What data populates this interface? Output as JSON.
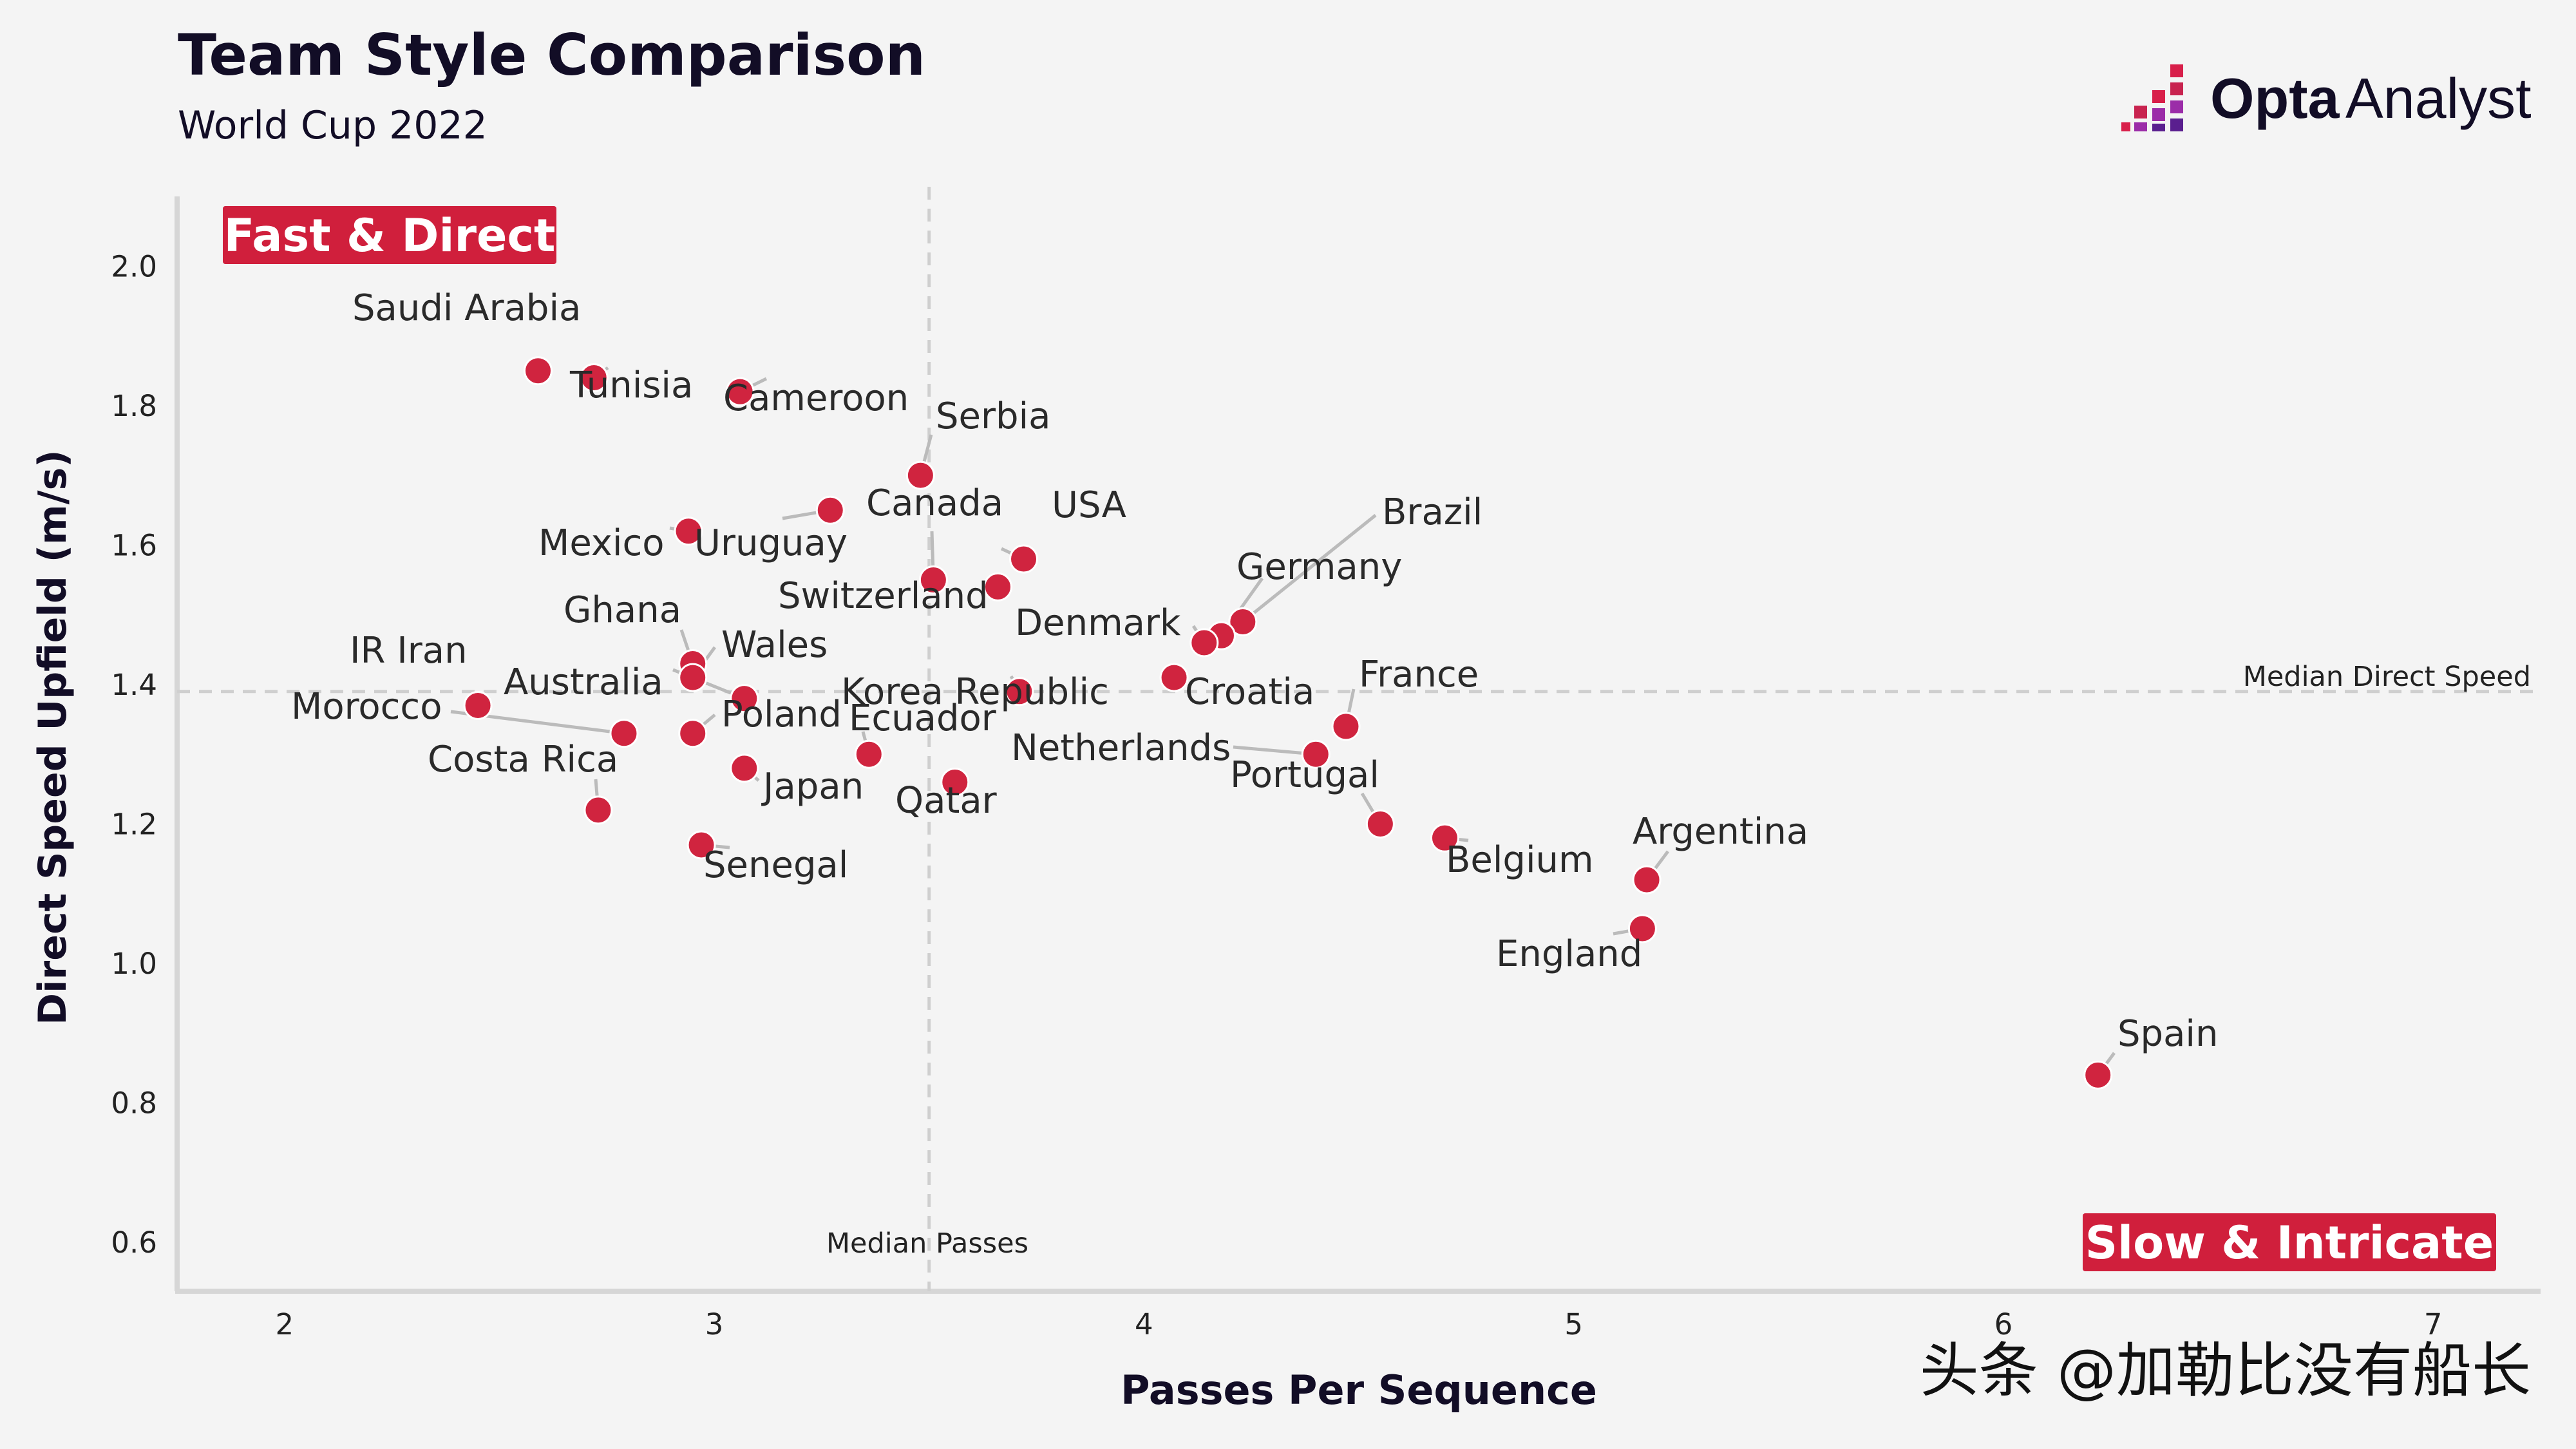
{
  "header": {
    "title": "Team Style Comparison",
    "subtitle": "World Cup 2022"
  },
  "brand": {
    "name_bold": "Opta",
    "name_light": "Analyst",
    "colors": [
      "#d81f4a",
      "#9b2ca8",
      "#5a1f8f"
    ]
  },
  "quadrants": {
    "top_left": "Fast & Direct",
    "bottom_right": "Slow & Intricate",
    "color": "#d01f3c"
  },
  "reference_lines": {
    "median_direct_speed_label": "Median Direct Speed",
    "median_passes_label": "Median Passes"
  },
  "watermark": "头条 @加勒比没有船长",
  "colors": {
    "point": "#d0243f",
    "background": "#f4f4f4",
    "leader": "#bbbbbb",
    "reference": "#cfcfcf"
  },
  "chart_data": {
    "type": "scatter",
    "title": "Team Style Comparison",
    "subtitle": "World Cup 2022",
    "xlabel": "Passes Per Sequence",
    "ylabel": "Direct Speed Upfield (m/s)",
    "xlim": [
      1.75,
      7.25
    ],
    "ylim": [
      0.53,
      2.1
    ],
    "xticks": [
      "2",
      "3",
      "4",
      "5",
      "6",
      "7"
    ],
    "yticks": [
      "0.6",
      "0.8",
      "1.0",
      "1.2",
      "1.4",
      "1.6",
      "1.8",
      "2.0"
    ],
    "median_x": 3.5,
    "median_y": 1.39,
    "points": [
      {
        "team": "Saudi Arabia",
        "x": 2.59,
        "y": 1.85
      },
      {
        "team": "Tunisia",
        "x": 2.72,
        "y": 1.84
      },
      {
        "team": "Cameroon",
        "x": 3.06,
        "y": 1.82
      },
      {
        "team": "Serbia",
        "x": 3.48,
        "y": 1.7
      },
      {
        "team": "Uruguay",
        "x": 3.27,
        "y": 1.65
      },
      {
        "team": "Mexico",
        "x": 2.94,
        "y": 1.62
      },
      {
        "team": "USA",
        "x": 3.72,
        "y": 1.58
      },
      {
        "team": "Canada",
        "x": 3.51,
        "y": 1.55
      },
      {
        "team": "Switzerland",
        "x": 3.66,
        "y": 1.54
      },
      {
        "team": "Brazil",
        "x": 4.23,
        "y": 1.49
      },
      {
        "team": "Germany",
        "x": 4.18,
        "y": 1.47
      },
      {
        "team": "Denmark",
        "x": 4.14,
        "y": 1.46
      },
      {
        "team": "Ghana",
        "x": 2.95,
        "y": 1.43
      },
      {
        "team": "Wales",
        "x": 2.95,
        "y": 1.41
      },
      {
        "team": "Croatia",
        "x": 4.07,
        "y": 1.41
      },
      {
        "team": "Korea Republic",
        "x": 3.71,
        "y": 1.39
      },
      {
        "team": "Australia",
        "x": 3.07,
        "y": 1.38
      },
      {
        "team": "IR Iran",
        "x": 2.45,
        "y": 1.37
      },
      {
        "team": "France",
        "x": 4.47,
        "y": 1.34
      },
      {
        "team": "Morocco",
        "x": 2.79,
        "y": 1.33
      },
      {
        "team": "Poland",
        "x": 2.95,
        "y": 1.33
      },
      {
        "team": "Ecuador",
        "x": 3.36,
        "y": 1.3
      },
      {
        "team": "Netherlands",
        "x": 4.4,
        "y": 1.3
      },
      {
        "team": "Japan",
        "x": 3.07,
        "y": 1.28
      },
      {
        "team": "Qatar",
        "x": 3.56,
        "y": 1.26
      },
      {
        "team": "Costa Rica",
        "x": 2.73,
        "y": 1.22
      },
      {
        "team": "Portugal",
        "x": 4.55,
        "y": 1.2
      },
      {
        "team": "Belgium",
        "x": 4.7,
        "y": 1.18
      },
      {
        "team": "Senegal",
        "x": 2.97,
        "y": 1.17
      },
      {
        "team": "Argentina",
        "x": 5.17,
        "y": 1.12
      },
      {
        "team": "England",
        "x": 5.16,
        "y": 1.05
      },
      {
        "team": "Spain",
        "x": 6.22,
        "y": 0.84
      }
    ]
  }
}
